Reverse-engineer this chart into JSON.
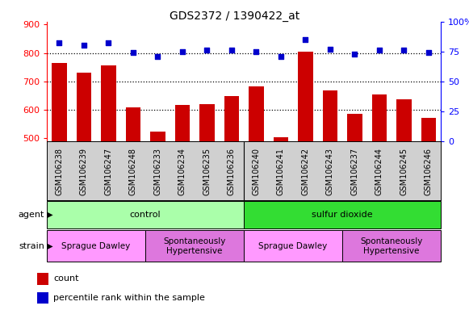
{
  "title": "GDS2372 / 1390422_at",
  "samples": [
    "GSM106238",
    "GSM106239",
    "GSM106247",
    "GSM106248",
    "GSM106233",
    "GSM106234",
    "GSM106235",
    "GSM106236",
    "GSM106240",
    "GSM106241",
    "GSM106242",
    "GSM106243",
    "GSM106237",
    "GSM106244",
    "GSM106245",
    "GSM106246"
  ],
  "counts": [
    765,
    730,
    757,
    608,
    522,
    618,
    621,
    648,
    681,
    502,
    805,
    668,
    585,
    653,
    636,
    571
  ],
  "percentiles": [
    82,
    80,
    82,
    74,
    71,
    75,
    76,
    76,
    75,
    71,
    85,
    77,
    73,
    76,
    76,
    74
  ],
  "ylim_left": [
    490,
    910
  ],
  "ylim_right": [
    0,
    100
  ],
  "yticks_left": [
    500,
    600,
    700,
    800,
    900
  ],
  "yticks_right": [
    0,
    25,
    50,
    75,
    100
  ],
  "bar_color": "#cc0000",
  "dot_color": "#0000cc",
  "bar_width": 0.6,
  "agent_groups": [
    {
      "label": "control",
      "start": 0,
      "end": 8,
      "color": "#aaffaa"
    },
    {
      "label": "sulfur dioxide",
      "start": 8,
      "end": 16,
      "color": "#33dd33"
    }
  ],
  "strain_groups": [
    {
      "label": "Sprague Dawley",
      "start": 0,
      "end": 4,
      "color": "#ff99ff"
    },
    {
      "label": "Spontaneously\nHypertensive",
      "start": 4,
      "end": 8,
      "color": "#dd77dd"
    },
    {
      "label": "Sprague Dawley",
      "start": 8,
      "end": 12,
      "color": "#ff99ff"
    },
    {
      "label": "Spontaneously\nHypertensive",
      "start": 12,
      "end": 16,
      "color": "#dd77dd"
    }
  ],
  "legend_count_color": "#cc0000",
  "legend_pct_color": "#0000cc",
  "bg_plot": "#ffffff",
  "bg_xlabel": "#d0d0d0",
  "bg_figure": "#ffffff",
  "figwidth": 5.81,
  "figheight": 3.84,
  "dpi": 100
}
